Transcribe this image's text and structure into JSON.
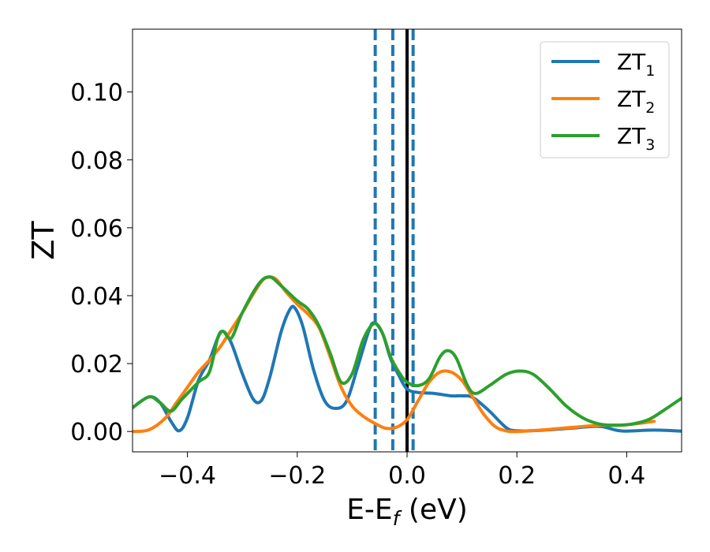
{
  "chart_data": {
    "type": "line",
    "title": "",
    "xlabel": "E-E",
    "xlabel_subscript": "f",
    "xlabel_suffix": " (eV)",
    "ylabel": "ZT",
    "xlim": [
      -0.5,
      0.5
    ],
    "ylim": [
      -0.006,
      0.1185
    ],
    "xticks": [
      -0.4,
      -0.2,
      0.0,
      0.2,
      0.4
    ],
    "xtick_labels": [
      "−0.4",
      "−0.2",
      "0.0",
      "0.2",
      "0.4"
    ],
    "yticks": [
      0.0,
      0.02,
      0.04,
      0.06,
      0.08,
      0.1
    ],
    "ytick_labels": [
      "0.00",
      "0.02",
      "0.04",
      "0.06",
      "0.08",
      "0.10"
    ],
    "grid": false,
    "legend_position": "top-right",
    "vlines": [
      {
        "x": -0.058,
        "style": "dashed",
        "color": "#1f77b4"
      },
      {
        "x": -0.026,
        "style": "dashed",
        "color": "#1f77b4"
      },
      {
        "x": 0.0,
        "style": "solid",
        "color": "#000000"
      },
      {
        "x": 0.011,
        "style": "dashed",
        "color": "#1f77b4"
      }
    ],
    "series": [
      {
        "name": "ZT",
        "subscript": "1",
        "color": "#1f77b4",
        "points": [
          [
            -0.5,
            0.007
          ],
          [
            -0.47,
            0.0102
          ],
          [
            -0.45,
            0.0085
          ],
          [
            -0.43,
            0.003
          ],
          [
            -0.415,
            0.0002
          ],
          [
            -0.4,
            0.004
          ],
          [
            -0.38,
            0.015
          ],
          [
            -0.36,
            0.021
          ],
          [
            -0.345,
            0.0275
          ],
          [
            -0.335,
            0.0295
          ],
          [
            -0.32,
            0.026
          ],
          [
            -0.3,
            0.017
          ],
          [
            -0.28,
            0.0095
          ],
          [
            -0.265,
            0.0092
          ],
          [
            -0.25,
            0.016
          ],
          [
            -0.23,
            0.029
          ],
          [
            -0.215,
            0.0355
          ],
          [
            -0.205,
            0.0365
          ],
          [
            -0.19,
            0.031
          ],
          [
            -0.17,
            0.018
          ],
          [
            -0.15,
            0.009
          ],
          [
            -0.13,
            0.0068
          ],
          [
            -0.11,
            0.009
          ],
          [
            -0.09,
            0.019
          ],
          [
            -0.07,
            0.0295
          ],
          [
            -0.06,
            0.032
          ],
          [
            -0.045,
            0.029
          ],
          [
            -0.03,
            0.0215
          ],
          [
            -0.015,
            0.0165
          ],
          [
            0.0,
            0.0125
          ],
          [
            0.02,
            0.0115
          ],
          [
            0.05,
            0.0112
          ],
          [
            0.08,
            0.0105
          ],
          [
            0.1,
            0.0105
          ],
          [
            0.12,
            0.01
          ],
          [
            0.15,
            0.006
          ],
          [
            0.18,
            0.0012
          ],
          [
            0.2,
            0.0002
          ],
          [
            0.25,
            0.0004
          ],
          [
            0.3,
            0.001
          ],
          [
            0.35,
            0.0015
          ],
          [
            0.38,
            0.0004
          ],
          [
            0.4,
            0.0001
          ],
          [
            0.45,
            0.0004
          ],
          [
            0.5,
            0.0001
          ]
        ]
      },
      {
        "name": "ZT",
        "subscript": "2",
        "color": "#ff7f0e",
        "points": [
          [
            -0.5,
            0.0
          ],
          [
            -0.47,
            0.0005
          ],
          [
            -0.44,
            0.004
          ],
          [
            -0.42,
            0.0085
          ],
          [
            -0.4,
            0.013
          ],
          [
            -0.38,
            0.0175
          ],
          [
            -0.36,
            0.021
          ],
          [
            -0.34,
            0.025
          ],
          [
            -0.32,
            0.03
          ],
          [
            -0.3,
            0.035
          ],
          [
            -0.28,
            0.0405
          ],
          [
            -0.26,
            0.045
          ],
          [
            -0.24,
            0.045
          ],
          [
            -0.22,
            0.041
          ],
          [
            -0.2,
            0.0375
          ],
          [
            -0.18,
            0.0345
          ],
          [
            -0.16,
            0.0305
          ],
          [
            -0.14,
            0.022
          ],
          [
            -0.12,
            0.013
          ],
          [
            -0.1,
            0.0075
          ],
          [
            -0.08,
            0.0045
          ],
          [
            -0.06,
            0.0025
          ],
          [
            -0.04,
            0.001
          ],
          [
            -0.02,
            0.0012
          ],
          [
            0.0,
            0.0035
          ],
          [
            0.02,
            0.009
          ],
          [
            0.04,
            0.0145
          ],
          [
            0.06,
            0.0175
          ],
          [
            0.08,
            0.0175
          ],
          [
            0.1,
            0.015
          ],
          [
            0.12,
            0.01
          ],
          [
            0.14,
            0.005
          ],
          [
            0.16,
            0.0015
          ],
          [
            0.18,
            0.0002
          ],
          [
            0.2,
            0.0
          ],
          [
            0.25,
            0.0005
          ],
          [
            0.3,
            0.0012
          ],
          [
            0.35,
            0.0018
          ],
          [
            0.4,
            0.002
          ],
          [
            0.45,
            0.003
          ]
        ]
      },
      {
        "name": "ZT",
        "subscript": "3",
        "color": "#2ca02c",
        "points": [
          [
            -0.5,
            0.007
          ],
          [
            -0.47,
            0.0102
          ],
          [
            -0.45,
            0.0085
          ],
          [
            -0.43,
            0.006
          ],
          [
            -0.41,
            0.0095
          ],
          [
            -0.38,
            0.0145
          ],
          [
            -0.36,
            0.0175
          ],
          [
            -0.345,
            0.0275
          ],
          [
            -0.335,
            0.0295
          ],
          [
            -0.32,
            0.0275
          ],
          [
            -0.3,
            0.035
          ],
          [
            -0.27,
            0.0435
          ],
          [
            -0.25,
            0.0455
          ],
          [
            -0.23,
            0.043
          ],
          [
            -0.2,
            0.0385
          ],
          [
            -0.18,
            0.036
          ],
          [
            -0.16,
            0.031
          ],
          [
            -0.14,
            0.023
          ],
          [
            -0.12,
            0.0145
          ],
          [
            -0.1,
            0.017
          ],
          [
            -0.08,
            0.027
          ],
          [
            -0.06,
            0.0318
          ],
          [
            -0.045,
            0.029
          ],
          [
            -0.03,
            0.022
          ],
          [
            -0.015,
            0.0175
          ],
          [
            0.0,
            0.0145
          ],
          [
            0.02,
            0.0135
          ],
          [
            0.04,
            0.0155
          ],
          [
            0.06,
            0.022
          ],
          [
            0.075,
            0.0238
          ],
          [
            0.09,
            0.0215
          ],
          [
            0.11,
            0.0135
          ],
          [
            0.125,
            0.0112
          ],
          [
            0.15,
            0.0135
          ],
          [
            0.18,
            0.0168
          ],
          [
            0.205,
            0.0178
          ],
          [
            0.23,
            0.0168
          ],
          [
            0.26,
            0.0125
          ],
          [
            0.29,
            0.0075
          ],
          [
            0.32,
            0.004
          ],
          [
            0.35,
            0.0022
          ],
          [
            0.38,
            0.0018
          ],
          [
            0.41,
            0.0022
          ],
          [
            0.44,
            0.0035
          ],
          [
            0.47,
            0.0065
          ],
          [
            0.5,
            0.0098
          ]
        ]
      }
    ]
  }
}
